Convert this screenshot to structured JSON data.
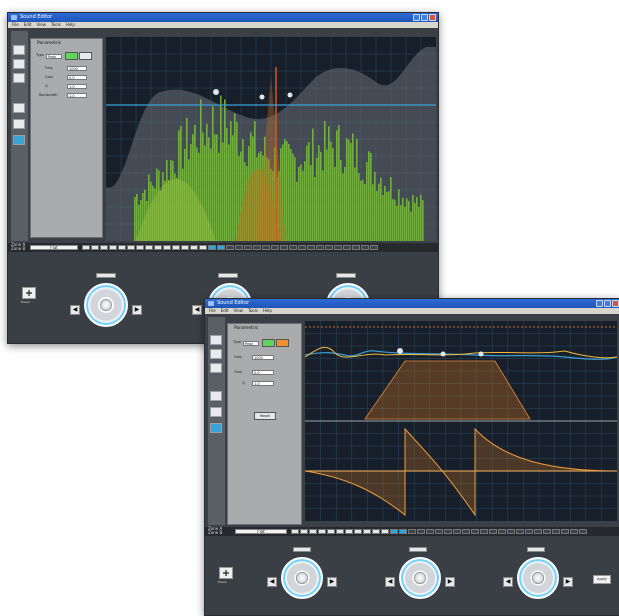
{
  "window1": {
    "title": "Sound Editor",
    "menu": [
      "File",
      "Edit",
      "View",
      "Tools",
      "Help"
    ],
    "panel_title": "Parametric",
    "fields": [
      {
        "label": "Type",
        "value": "Peak"
      },
      {
        "label": "Freq",
        "value": "1000"
      },
      {
        "label": "Gain",
        "value": "0.0"
      },
      {
        "label": "Q",
        "value": "1.0"
      },
      {
        "label": "Bandwidth",
        "value": "1.0"
      }
    ],
    "preset_value": "Flat",
    "strip_label_top": "Zone A",
    "strip_label_bottom": "Zone B",
    "power_label": "Power",
    "colors": {
      "grid": "#2e4a5e",
      "spectrum": "#7ec83a",
      "eq_fill": "#c8701f",
      "flat": "#3aa0d8",
      "panel": "#a9abad"
    }
  },
  "window2": {
    "title": "Sound Editor",
    "menu": [
      "File",
      "Edit",
      "View",
      "Tools",
      "Help"
    ],
    "panel_title": "Parametric",
    "fields": [
      {
        "label": "Type",
        "value": "Peak"
      },
      {
        "label": "Freq",
        "value": "1000"
      },
      {
        "label": "Gain",
        "value": "0.0"
      },
      {
        "label": "Q",
        "value": "1.0"
      }
    ],
    "reset_button": "Reset",
    "preset_value": "Flat",
    "strip_label_top": "Zone A",
    "strip_label_bottom": "Zone B",
    "power_label": "Power",
    "apply_label": "Apply",
    "colors": {
      "magnitude": "#f0b83a",
      "phase": "#f29c3a",
      "flat": "#3aa0d8",
      "band_fill": "#c8701f"
    }
  }
}
